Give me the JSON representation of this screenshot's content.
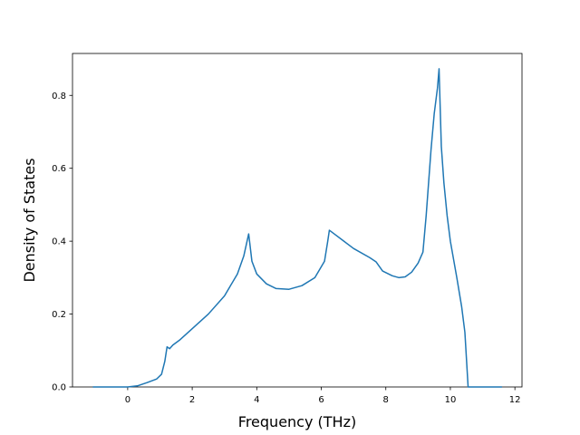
{
  "chart_data": {
    "type": "line",
    "xlabel": "Frequency (THz)",
    "ylabel": "Density of States",
    "x": [
      -1.08,
      0,
      0.3,
      0.6,
      0.9,
      1.05,
      1.15,
      1.22,
      1.3,
      1.4,
      1.6,
      2.0,
      2.5,
      3.0,
      3.4,
      3.6,
      3.75,
      3.85,
      4.0,
      4.3,
      4.6,
      5.0,
      5.4,
      5.8,
      6.1,
      6.2,
      6.25,
      6.4,
      6.7,
      7.0,
      7.5,
      7.7,
      7.9,
      8.2,
      8.4,
      8.6,
      8.8,
      9.0,
      9.15,
      9.25,
      9.4,
      9.5,
      9.6,
      9.65,
      9.72,
      9.8,
      9.9,
      10.0,
      10.2,
      10.35,
      10.45,
      10.55,
      11.6
    ],
    "values": [
      0,
      0,
      0.003,
      0.012,
      0.022,
      0.035,
      0.07,
      0.11,
      0.105,
      0.115,
      0.128,
      0.16,
      0.2,
      0.25,
      0.31,
      0.36,
      0.42,
      0.345,
      0.31,
      0.283,
      0.27,
      0.268,
      0.278,
      0.3,
      0.345,
      0.4,
      0.43,
      0.42,
      0.4,
      0.38,
      0.355,
      0.343,
      0.318,
      0.305,
      0.3,
      0.302,
      0.315,
      0.34,
      0.37,
      0.47,
      0.65,
      0.75,
      0.82,
      0.873,
      0.66,
      0.56,
      0.47,
      0.4,
      0.3,
      0.22,
      0.15,
      0.0,
      0
    ],
    "color": "#1f77b4",
    "xlim": [
      -1.71,
      12.22
    ],
    "ylim": [
      0,
      0.915
    ],
    "xticks": [
      0,
      2,
      4,
      6,
      8,
      10,
      12
    ],
    "yticks": [
      {
        "value": 0,
        "label": "0.0"
      },
      0.2,
      0.4,
      0.6,
      0.8
    ]
  }
}
